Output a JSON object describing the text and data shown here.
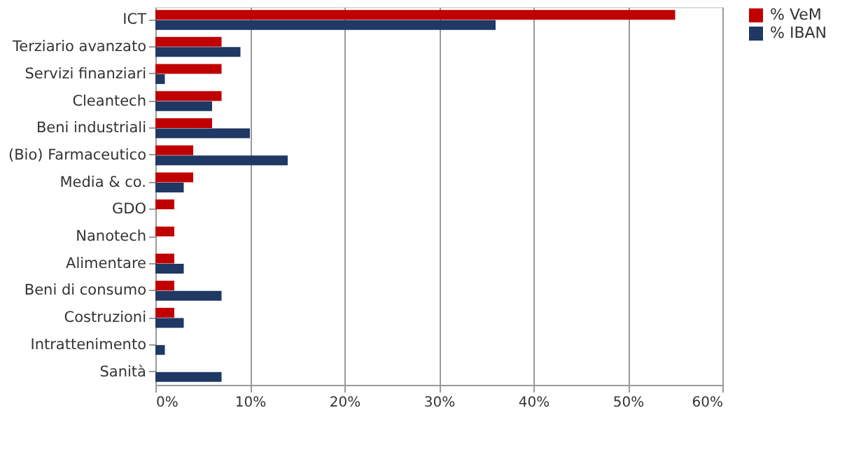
{
  "chart_data": {
    "type": "bar",
    "orientation": "horizontal",
    "categories": [
      "ICT",
      "Terziario avanzato",
      "Servizi finanziari",
      "Cleantech",
      "Beni industriali",
      "(Bio) Farmaceutico",
      "Media & co.",
      "GDO",
      "Nanotech",
      "Alimentare",
      "Beni di consumo",
      "Costruzioni",
      "Intrattenimento",
      "Sanità"
    ],
    "series": [
      {
        "name": "% VeM",
        "color": "#c00000",
        "values": [
          55,
          7,
          7,
          7,
          6,
          4,
          4,
          2,
          2,
          2,
          2,
          2,
          0,
          0
        ]
      },
      {
        "name": "% IBAN",
        "color": "#1f3864",
        "values": [
          36,
          9,
          1,
          6,
          10,
          14,
          3,
          0,
          0,
          3,
          7,
          3,
          1,
          7
        ]
      }
    ],
    "xlim": [
      0,
      60
    ],
    "xticks": [
      {
        "value": 0,
        "label": "0%"
      },
      {
        "value": 10,
        "label": "10%"
      },
      {
        "value": 20,
        "label": "20%"
      },
      {
        "value": 30,
        "label": "30%"
      },
      {
        "value": 40,
        "label": "40%"
      },
      {
        "value": 50,
        "label": "50%"
      },
      {
        "value": 60,
        "label": "60%"
      }
    ],
    "grid": "x",
    "legend": "right"
  }
}
